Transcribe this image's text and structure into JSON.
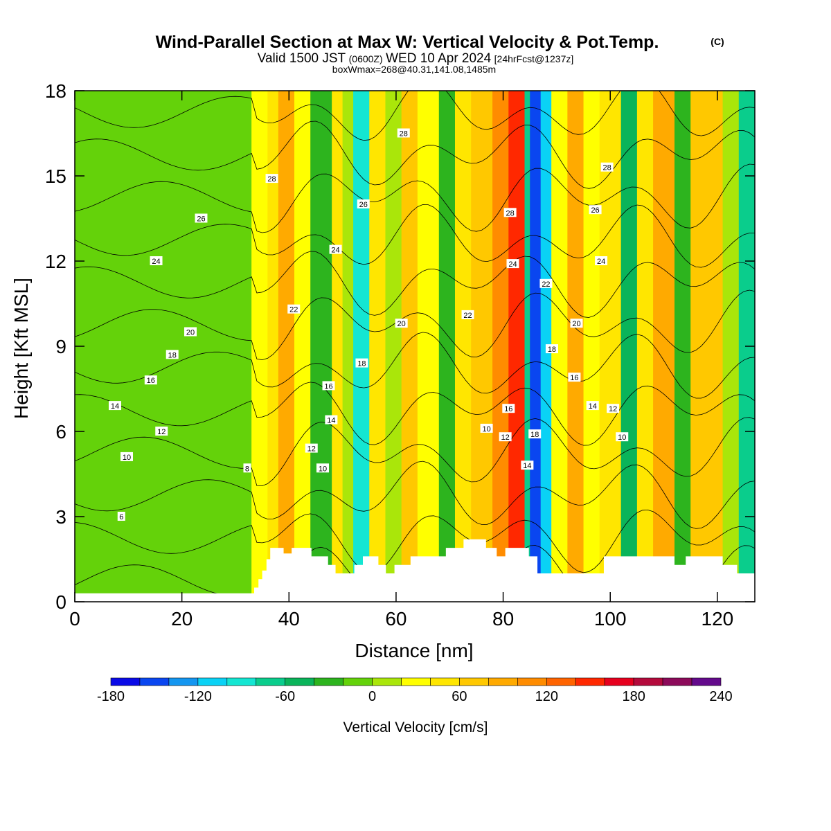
{
  "title": {
    "main": "Wind-Parallel Section at Max W: Vertical Velocity & Pot.Temp.",
    "copyright": "(C)",
    "valid_prefix": "Valid 1500 JST",
    "valid_utc": "(0600Z)",
    "valid_date": "WED 10 Apr 2024",
    "forecast": "[24hrFcst@1237z]",
    "box_info": "boxWmax=268@40.31,141.08,1485m"
  },
  "chart_data": {
    "type": "heatmap",
    "xlabel": "Distance [nm]",
    "ylabel": "Height [Kft MSL]",
    "xlim": [
      0,
      127
    ],
    "ylim": [
      0,
      18
    ],
    "x_ticks": [
      0,
      20,
      40,
      60,
      80,
      100,
      120
    ],
    "y_ticks": [
      0,
      3,
      6,
      9,
      12,
      15,
      18
    ],
    "colorbar": {
      "title": "Vertical Velocity [cm/s]",
      "levels": [
        -180,
        -160,
        -140,
        -120,
        -100,
        -80,
        -60,
        -40,
        -20,
        0,
        20,
        40,
        60,
        80,
        100,
        120,
        140,
        160,
        180,
        200,
        220,
        240
      ],
      "tick_labels": [
        "-180",
        "-120",
        "-60",
        "0",
        "60",
        "120",
        "180",
        "240"
      ],
      "colors": [
        "#0a0ae6",
        "#0a46f0",
        "#1496f0",
        "#0ad2f5",
        "#14e6d2",
        "#0acd8c",
        "#0ab45a",
        "#2db41e",
        "#64d20a",
        "#aae60a",
        "#ffff00",
        "#ffe600",
        "#ffc800",
        "#ffaa00",
        "#ff8c00",
        "#ff6400",
        "#ff2800",
        "#e6001e",
        "#b40a3c",
        "#8c0a5a",
        "#640a8c"
      ]
    },
    "vertical_velocity_bands": [
      {
        "x": [
          0,
          33
        ],
        "value": -10
      },
      {
        "x": [
          33,
          36
        ],
        "value": 30
      },
      {
        "x": [
          36,
          38
        ],
        "value": 50
      },
      {
        "x": [
          38,
          41
        ],
        "value": 80
      },
      {
        "x": [
          41,
          44
        ],
        "value": 20
      },
      {
        "x": [
          44,
          48
        ],
        "value": -30
      },
      {
        "x": [
          48,
          50
        ],
        "value": 40
      },
      {
        "x": [
          50,
          52
        ],
        "value": 10
      },
      {
        "x": [
          52,
          55
        ],
        "value": -90
      },
      {
        "x": [
          55,
          58
        ],
        "value": 40
      },
      {
        "x": [
          58,
          61
        ],
        "value": 10
      },
      {
        "x": [
          61,
          64
        ],
        "value": 70
      },
      {
        "x": [
          64,
          68
        ],
        "value": 30
      },
      {
        "x": [
          68,
          71
        ],
        "value": -40
      },
      {
        "x": [
          71,
          74
        ],
        "value": 50
      },
      {
        "x": [
          74,
          78
        ],
        "value": 70
      },
      {
        "x": [
          78,
          81
        ],
        "value": 110
      },
      {
        "x": [
          81,
          84
        ],
        "value": 150
      },
      {
        "x": [
          84,
          85
        ],
        "value": -80
      },
      {
        "x": [
          85,
          87
        ],
        "value": -160
      },
      {
        "x": [
          87,
          89
        ],
        "value": -110
      },
      {
        "x": [
          89,
          92
        ],
        "value": 30
      },
      {
        "x": [
          92,
          95
        ],
        "value": 80
      },
      {
        "x": [
          95,
          98
        ],
        "value": 20
      },
      {
        "x": [
          98,
          102
        ],
        "value": 40
      },
      {
        "x": [
          102,
          105
        ],
        "value": -50
      },
      {
        "x": [
          105,
          108
        ],
        "value": 50
      },
      {
        "x": [
          108,
          112
        ],
        "value": 80
      },
      {
        "x": [
          112,
          115
        ],
        "value": -30
      },
      {
        "x": [
          115,
          118
        ],
        "value": 60
      },
      {
        "x": [
          118,
          121
        ],
        "value": 70
      },
      {
        "x": [
          121,
          124
        ],
        "value": 10
      },
      {
        "x": [
          124,
          127
        ],
        "value": -70
      }
    ],
    "potential_temperature_label_values": [
      6,
      8,
      10,
      12,
      14,
      16,
      18,
      20,
      22,
      24,
      26,
      28
    ],
    "contour_labels": [
      {
        "x": 8.7,
        "y": 3.0,
        "text": "6"
      },
      {
        "x": 32.2,
        "y": 4.7,
        "text": "8"
      },
      {
        "x": 9.7,
        "y": 5.1,
        "text": "10"
      },
      {
        "x": 16.2,
        "y": 6.0,
        "text": "12"
      },
      {
        "x": 7.5,
        "y": 6.9,
        "text": "14"
      },
      {
        "x": 14.2,
        "y": 7.8,
        "text": "16"
      },
      {
        "x": 18.2,
        "y": 8.7,
        "text": "18"
      },
      {
        "x": 21.6,
        "y": 9.5,
        "text": "20"
      },
      {
        "x": 15.2,
        "y": 12.0,
        "text": "24"
      },
      {
        "x": 23.6,
        "y": 13.5,
        "text": "26"
      },
      {
        "x": 36.8,
        "y": 14.9,
        "text": "28"
      },
      {
        "x": 40.9,
        "y": 10.3,
        "text": "22"
      },
      {
        "x": 44.2,
        "y": 5.4,
        "text": "12"
      },
      {
        "x": 46.3,
        "y": 4.7,
        "text": "10"
      },
      {
        "x": 47.9,
        "y": 6.4,
        "text": "14"
      },
      {
        "x": 47.4,
        "y": 7.6,
        "text": "16"
      },
      {
        "x": 53.6,
        "y": 8.4,
        "text": "18"
      },
      {
        "x": 61.0,
        "y": 9.8,
        "text": "20"
      },
      {
        "x": 48.7,
        "y": 12.4,
        "text": "24"
      },
      {
        "x": 53.9,
        "y": 14.0,
        "text": "26"
      },
      {
        "x": 61.4,
        "y": 16.5,
        "text": "28"
      },
      {
        "x": 73.4,
        "y": 10.1,
        "text": "22"
      },
      {
        "x": 76.9,
        "y": 6.1,
        "text": "10"
      },
      {
        "x": 80.4,
        "y": 5.8,
        "text": "12"
      },
      {
        "x": 81.0,
        "y": 6.8,
        "text": "16"
      },
      {
        "x": 84.5,
        "y": 4.8,
        "text": "14"
      },
      {
        "x": 85.9,
        "y": 5.9,
        "text": "18"
      },
      {
        "x": 81.8,
        "y": 11.9,
        "text": "24"
      },
      {
        "x": 81.3,
        "y": 13.7,
        "text": "28"
      },
      {
        "x": 88.0,
        "y": 11.2,
        "text": "22"
      },
      {
        "x": 89.1,
        "y": 8.9,
        "text": "18"
      },
      {
        "x": 93.3,
        "y": 7.9,
        "text": "16"
      },
      {
        "x": 93.7,
        "y": 9.8,
        "text": "20"
      },
      {
        "x": 96.7,
        "y": 6.9,
        "text": "14"
      },
      {
        "x": 100.5,
        "y": 6.8,
        "text": "12"
      },
      {
        "x": 102.2,
        "y": 5.8,
        "text": "10"
      },
      {
        "x": 98.3,
        "y": 12.0,
        "text": "24"
      },
      {
        "x": 97.2,
        "y": 13.8,
        "text": "26"
      },
      {
        "x": 99.4,
        "y": 15.3,
        "text": "28"
      }
    ],
    "terrain": [
      [
        0,
        0.3
      ],
      [
        33.5,
        0.3
      ],
      [
        33.5,
        0.5
      ],
      [
        34.3,
        0.5
      ],
      [
        34.3,
        0.8
      ],
      [
        35,
        0.8
      ],
      [
        35,
        1.1
      ],
      [
        35.8,
        1.1
      ],
      [
        35.8,
        1.5
      ],
      [
        36.5,
        1.5
      ],
      [
        36.5,
        1.9
      ],
      [
        39,
        1.9
      ],
      [
        39,
        1.7
      ],
      [
        40.5,
        1.7
      ],
      [
        40.5,
        1.9
      ],
      [
        44.2,
        1.9
      ],
      [
        44.2,
        1.6
      ],
      [
        47.3,
        1.6
      ],
      [
        47.3,
        1.3
      ],
      [
        48.7,
        1.3
      ],
      [
        48.7,
        1.0
      ],
      [
        52.2,
        1.0
      ],
      [
        52.2,
        1.3
      ],
      [
        53.8,
        1.3
      ],
      [
        53.8,
        1.6
      ],
      [
        56.7,
        1.6
      ],
      [
        56.7,
        1.3
      ],
      [
        58.1,
        1.3
      ],
      [
        58.1,
        1.0
      ],
      [
        59.7,
        1.0
      ],
      [
        59.7,
        1.3
      ],
      [
        62.7,
        1.3
      ],
      [
        62.7,
        1.6
      ],
      [
        69.3,
        1.6
      ],
      [
        69.3,
        1.9
      ],
      [
        72.6,
        1.9
      ],
      [
        72.6,
        2.2
      ],
      [
        76.8,
        2.2
      ],
      [
        76.8,
        1.9
      ],
      [
        78.8,
        1.9
      ],
      [
        78.8,
        1.6
      ],
      [
        80.4,
        1.6
      ],
      [
        80.4,
        1.9
      ],
      [
        84.8,
        1.9
      ],
      [
        84.8,
        1.6
      ],
      [
        86.4,
        1.6
      ],
      [
        86.4,
        1.0
      ],
      [
        98.8,
        1.0
      ],
      [
        98.8,
        1.6
      ],
      [
        112,
        1.6
      ],
      [
        112,
        1.3
      ],
      [
        114.1,
        1.3
      ],
      [
        114.1,
        1.6
      ],
      [
        121,
        1.6
      ],
      [
        121,
        1.3
      ],
      [
        123.7,
        1.3
      ],
      [
        123.7,
        1.0
      ],
      [
        127,
        1.0
      ]
    ]
  }
}
